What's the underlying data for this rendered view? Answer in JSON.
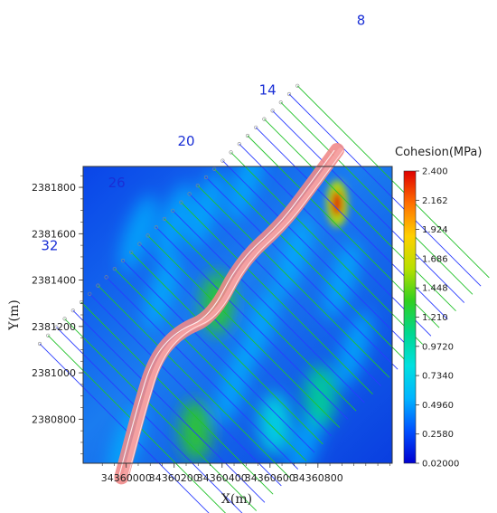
{
  "chart_data": {
    "type": "heatmap",
    "title": "",
    "xlabel": "X(m)",
    "ylabel": "Y(m)",
    "xlim": [
      34359820,
      34361110
    ],
    "ylim": [
      2380610,
      2381890
    ],
    "x_ticks": [
      {
        "value": 34360000,
        "label": "34360000"
      },
      {
        "value": 34360200,
        "label": "34360200"
      },
      {
        "value": 34360400,
        "label": "34360400"
      },
      {
        "value": 34360600,
        "label": "34360600"
      },
      {
        "value": 34360800,
        "label": "34360800"
      }
    ],
    "y_ticks": [
      {
        "value": 2380800,
        "label": "2380800"
      },
      {
        "value": 2381000,
        "label": "2381000"
      },
      {
        "value": 2381200,
        "label": "2381200"
      },
      {
        "value": 2381400,
        "label": "2381400"
      },
      {
        "value": 2381600,
        "label": "2381600"
      },
      {
        "value": 2381800,
        "label": "2381800"
      }
    ],
    "colorbar": {
      "title": "Cohesion(MPa)",
      "min": 0.02,
      "max": 2.4,
      "ticks": [
        {
          "value": 2.4,
          "label": "2.400"
        },
        {
          "value": 2.162,
          "label": "2.162"
        },
        {
          "value": 1.924,
          "label": "1.924"
        },
        {
          "value": 1.686,
          "label": "1.686"
        },
        {
          "value": 1.448,
          "label": "1.448"
        },
        {
          "value": 1.21,
          "label": "1.210"
        },
        {
          "value": 0.972,
          "label": "0.9720"
        },
        {
          "value": 0.734,
          "label": "0.7340"
        },
        {
          "value": 0.496,
          "label": "0.4960"
        },
        {
          "value": 0.258,
          "label": "0.2580"
        },
        {
          "value": 0.02,
          "label": "0.02000"
        }
      ],
      "colors": [
        "#0000d0",
        "#0050ff",
        "#00b4ff",
        "#00e0e0",
        "#00d890",
        "#30d020",
        "#b8e000",
        "#ffd000",
        "#ff7000",
        "#e00000"
      ]
    },
    "survey_line_labels": [
      {
        "label": "8",
        "x": 34360980,
        "y": 2382500
      },
      {
        "label": "14",
        "x": 34360590,
        "y": 2382200
      },
      {
        "label": "20",
        "x": 34360250,
        "y": 2381980
      },
      {
        "label": "26",
        "x": 34359960,
        "y": 2381800
      },
      {
        "label": "32",
        "x": 34359680,
        "y": 2381530
      }
    ],
    "tunnel_path": [
      [
        34359980,
        2380550
      ],
      [
        34360060,
        2380860
      ],
      [
        34360120,
        2381060
      ],
      [
        34360220,
        2381180
      ],
      [
        34360360,
        2381240
      ],
      [
        34360480,
        2381480
      ],
      [
        34360650,
        2381640
      ],
      [
        34360760,
        2381790
      ],
      [
        34360880,
        2381960
      ]
    ],
    "high_zones": [
      {
        "x": 34360880,
        "y": 2381730,
        "value": 2.3
      },
      {
        "x": 34360380,
        "y": 2381300,
        "value": 1.4
      },
      {
        "x": 34360290,
        "y": 2380750,
        "value": 1.3
      },
      {
        "x": 34360810,
        "y": 2380900,
        "value": 1.2
      },
      {
        "x": 34360620,
        "y": 2380780,
        "value": 0.9
      }
    ]
  }
}
